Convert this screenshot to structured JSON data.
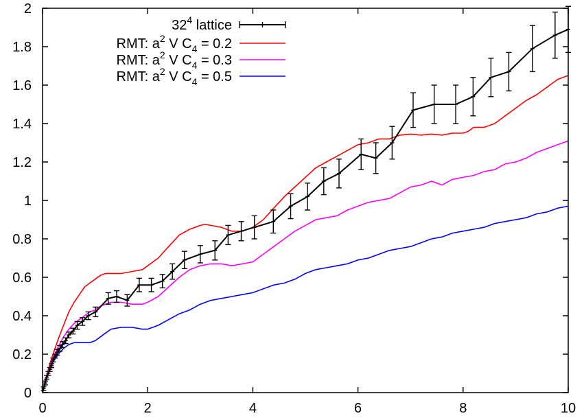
{
  "chart_data": {
    "type": "line",
    "title": "",
    "xlabel": "",
    "ylabel": "",
    "xlim": [
      0,
      10
    ],
    "ylim": [
      0,
      2
    ],
    "xticks": [
      "0",
      "2",
      "4",
      "6",
      "8",
      "10"
    ],
    "yticks": [
      "0",
      "0.2",
      "0.4",
      "0.6",
      "0.8",
      "1",
      "1.2",
      "1.4",
      "1.6",
      "1.8",
      "2"
    ],
    "grid": false,
    "legend_position": "top-right",
    "series": [
      {
        "name": "32⁴ lattice",
        "legend": {
          "main": "32",
          "sup": "4",
          "rest": " lattice"
        },
        "color": "#000000",
        "style": "line+errorbars",
        "x": [
          0.02,
          0.05,
          0.08,
          0.11,
          0.14,
          0.17,
          0.2,
          0.24,
          0.28,
          0.33,
          0.38,
          0.44,
          0.5,
          0.58,
          0.66,
          0.76,
          0.87,
          1.01,
          1.25,
          1.41,
          1.61,
          1.84,
          2.07,
          2.28,
          2.47,
          2.7,
          3.0,
          3.28,
          3.53,
          3.78,
          4.03,
          4.39,
          4.72,
          5.04,
          5.35,
          5.64,
          6.06,
          6.34,
          6.65,
          7.05,
          7.45,
          7.86,
          8.19,
          8.53,
          8.87,
          9.32,
          9.75,
          10.0
        ],
        "y": [
          0.02,
          0.05,
          0.08,
          0.1,
          0.12,
          0.14,
          0.17,
          0.19,
          0.21,
          0.23,
          0.25,
          0.27,
          0.3,
          0.32,
          0.35,
          0.37,
          0.4,
          0.42,
          0.49,
          0.5,
          0.48,
          0.56,
          0.56,
          0.58,
          0.63,
          0.69,
          0.72,
          0.74,
          0.82,
          0.84,
          0.86,
          0.89,
          0.97,
          1.02,
          1.1,
          1.14,
          1.24,
          1.22,
          1.3,
          1.47,
          1.5,
          1.5,
          1.54,
          1.64,
          1.67,
          1.79,
          1.86,
          1.89
        ],
        "err": [
          0.01,
          0.01,
          0.01,
          0.01,
          0.01,
          0.01,
          0.01,
          0.01,
          0.015,
          0.015,
          0.015,
          0.015,
          0.015,
          0.015,
          0.02,
          0.02,
          0.02,
          0.025,
          0.03,
          0.03,
          0.03,
          0.035,
          0.035,
          0.035,
          0.04,
          0.045,
          0.045,
          0.05,
          0.05,
          0.05,
          0.06,
          0.06,
          0.065,
          0.07,
          0.07,
          0.075,
          0.08,
          0.08,
          0.085,
          0.09,
          0.1,
          0.1,
          0.1,
          0.1,
          0.1,
          0.12,
          0.12,
          0.12
        ]
      },
      {
        "name": "RMT: a² V C₄ = 0.2",
        "legend": {
          "a": "RMT: a",
          "sup": "2",
          "b": " V C",
          "sub": "4",
          "c": " = 0.2"
        },
        "color": "#ff0000",
        "style": "line",
        "x": [
          0,
          0.05,
          0.1,
          0.15,
          0.2,
          0.3,
          0.4,
          0.5,
          0.6,
          0.7,
          0.8,
          0.9,
          1.0,
          1.1,
          1.2,
          1.3,
          1.5,
          1.7,
          1.9,
          2.0,
          2.2,
          2.4,
          2.6,
          2.8,
          3.0,
          3.1,
          3.2,
          3.4,
          3.6,
          3.8,
          4.0,
          4.2,
          4.4,
          4.6,
          4.8,
          5.0,
          5.2,
          5.4,
          5.6,
          5.8,
          6.0,
          6.2,
          6.4,
          6.6,
          6.8,
          7.0,
          7.2,
          7.4,
          7.6,
          7.8,
          8.0,
          8.1,
          8.2,
          8.4,
          8.6,
          8.8,
          9.0,
          9.2,
          9.4,
          9.6,
          9.8,
          10.0
        ],
        "y": [
          0,
          0.06,
          0.11,
          0.16,
          0.2,
          0.28,
          0.35,
          0.42,
          0.47,
          0.51,
          0.55,
          0.57,
          0.59,
          0.61,
          0.62,
          0.62,
          0.62,
          0.63,
          0.64,
          0.66,
          0.7,
          0.76,
          0.82,
          0.85,
          0.87,
          0.875,
          0.87,
          0.86,
          0.84,
          0.84,
          0.86,
          0.9,
          0.96,
          1.02,
          1.07,
          1.12,
          1.17,
          1.2,
          1.23,
          1.26,
          1.29,
          1.3,
          1.32,
          1.32,
          1.34,
          1.345,
          1.34,
          1.345,
          1.34,
          1.35,
          1.35,
          1.36,
          1.38,
          1.38,
          1.4,
          1.44,
          1.48,
          1.52,
          1.55,
          1.59,
          1.63,
          1.65
        ]
      },
      {
        "name": "RMT: a² V C₄ = 0.3",
        "legend": {
          "a": "RMT: a",
          "sup": "2",
          "b": " V C",
          "sub": "4",
          "c": " = 0.3"
        },
        "color": "#ff00ff",
        "style": "line",
        "x": [
          0,
          0.05,
          0.1,
          0.15,
          0.2,
          0.3,
          0.4,
          0.5,
          0.6,
          0.7,
          0.8,
          0.9,
          1.0,
          1.1,
          1.2,
          1.3,
          1.5,
          1.7,
          1.9,
          2.0,
          2.2,
          2.4,
          2.6,
          2.8,
          3.0,
          3.2,
          3.4,
          3.6,
          3.8,
          4.0,
          4.2,
          4.4,
          4.6,
          4.8,
          5.0,
          5.2,
          5.4,
          5.6,
          5.8,
          6.0,
          6.2,
          6.4,
          6.6,
          6.8,
          7.0,
          7.2,
          7.4,
          7.6,
          7.8,
          8.0,
          8.2,
          8.4,
          8.6,
          8.8,
          9.0,
          9.2,
          9.4,
          9.6,
          9.8,
          10.0
        ],
        "y": [
          0,
          0.06,
          0.1,
          0.14,
          0.18,
          0.24,
          0.29,
          0.33,
          0.36,
          0.38,
          0.4,
          0.42,
          0.43,
          0.45,
          0.46,
          0.47,
          0.47,
          0.46,
          0.46,
          0.47,
          0.5,
          0.55,
          0.6,
          0.64,
          0.66,
          0.67,
          0.67,
          0.66,
          0.67,
          0.68,
          0.72,
          0.76,
          0.8,
          0.84,
          0.87,
          0.9,
          0.91,
          0.92,
          0.95,
          0.97,
          0.99,
          1.0,
          1.01,
          1.04,
          1.07,
          1.08,
          1.1,
          1.08,
          1.11,
          1.12,
          1.13,
          1.15,
          1.16,
          1.19,
          1.2,
          1.22,
          1.25,
          1.27,
          1.29,
          1.31
        ]
      },
      {
        "name": "RMT: a² V C₄ = 0.5",
        "legend": {
          "a": "RMT: a",
          "sup": "2",
          "b": " V C",
          "sub": "4",
          "c": " = 0.5"
        },
        "color": "#0000ff",
        "style": "line",
        "x": [
          0,
          0.05,
          0.1,
          0.15,
          0.2,
          0.3,
          0.4,
          0.5,
          0.6,
          0.7,
          0.8,
          0.9,
          1.0,
          1.1,
          1.2,
          1.3,
          1.5,
          1.7,
          1.9,
          2.0,
          2.2,
          2.4,
          2.6,
          2.8,
          3.0,
          3.2,
          3.4,
          3.6,
          3.8,
          4.0,
          4.2,
          4.4,
          4.6,
          4.8,
          5.0,
          5.2,
          5.4,
          5.6,
          5.8,
          6.0,
          6.2,
          6.4,
          6.6,
          6.8,
          7.0,
          7.2,
          7.4,
          7.6,
          7.8,
          8.0,
          8.2,
          8.4,
          8.6,
          8.8,
          9.0,
          9.2,
          9.4,
          9.6,
          9.8,
          10.0
        ],
        "y": [
          0,
          0.05,
          0.09,
          0.13,
          0.16,
          0.2,
          0.23,
          0.25,
          0.26,
          0.26,
          0.26,
          0.26,
          0.27,
          0.29,
          0.31,
          0.33,
          0.34,
          0.34,
          0.33,
          0.33,
          0.35,
          0.38,
          0.41,
          0.43,
          0.46,
          0.48,
          0.49,
          0.5,
          0.51,
          0.52,
          0.54,
          0.56,
          0.57,
          0.59,
          0.62,
          0.64,
          0.65,
          0.66,
          0.67,
          0.69,
          0.7,
          0.72,
          0.74,
          0.75,
          0.76,
          0.78,
          0.8,
          0.81,
          0.83,
          0.84,
          0.85,
          0.86,
          0.88,
          0.89,
          0.9,
          0.91,
          0.93,
          0.94,
          0.96,
          0.97
        ]
      }
    ]
  }
}
